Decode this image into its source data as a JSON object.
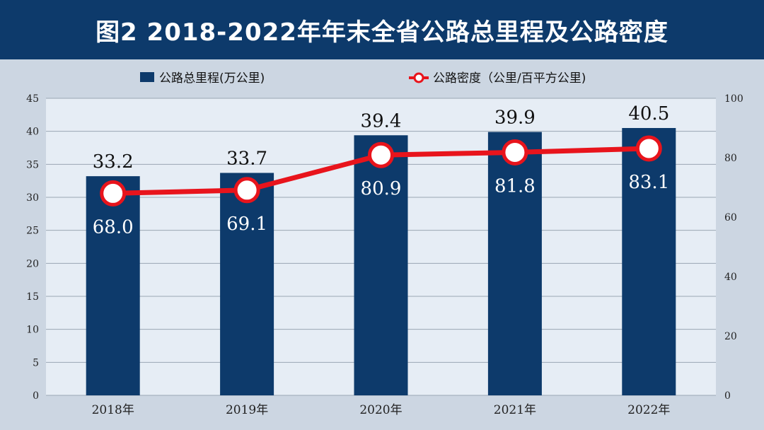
{
  "header": {
    "title": "图2  2018-2022年年末全省公路总里程及公路密度"
  },
  "colors": {
    "title_bg": "#0d3a6b",
    "bar": "#0d3a6b",
    "line": "#e8141c",
    "plot_bg": "#e6edf5",
    "outer_bg": "#ccd6e2"
  },
  "chart_data": {
    "type": "bar",
    "categories": [
      "2018年",
      "2019年",
      "2020年",
      "2021年",
      "2022年"
    ],
    "series": [
      {
        "name": "公路总里程(万公里)",
        "type": "bar",
        "axis": "left",
        "values": [
          33.2,
          33.7,
          39.4,
          39.9,
          40.5
        ],
        "labels": [
          "33.2",
          "33.7",
          "39.4",
          "39.9",
          "40.5"
        ]
      },
      {
        "name": "公路密度（公里/百平方公里)",
        "type": "line",
        "axis": "right",
        "values": [
          68.0,
          69.1,
          80.9,
          81.8,
          83.1
        ],
        "labels": [
          "68.0",
          "69.1",
          "80.9",
          "81.8",
          "83.1"
        ]
      }
    ],
    "left_axis": {
      "ylim": [
        0,
        45
      ],
      "ticks": [
        "0",
        "5",
        "10",
        "15",
        "20",
        "25",
        "30",
        "35",
        "40",
        "45"
      ]
    },
    "right_axis": {
      "ylim": [
        0,
        100
      ],
      "ticks": [
        "0",
        "20",
        "40",
        "60",
        "80",
        "100"
      ]
    },
    "grid": true,
    "legend_position": "top"
  }
}
